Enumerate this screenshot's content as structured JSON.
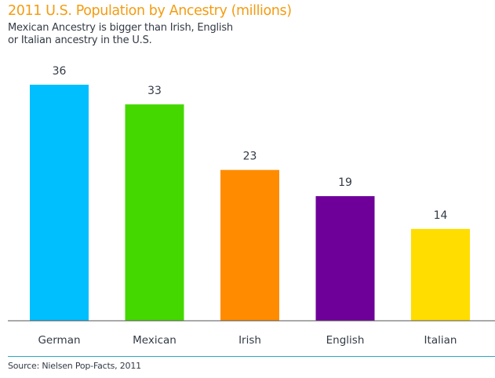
{
  "chart_data": {
    "type": "bar",
    "title": "2011 U.S. Population by Ancestry (millions)",
    "subtitle_lines": [
      "Mexican Ancestry is bigger than Irish, English",
      "or Italian ancestry in the U.S."
    ],
    "categories": [
      "German",
      "Mexican",
      "Irish",
      "English",
      "Italian"
    ],
    "values": [
      36,
      33,
      23,
      19,
      14
    ],
    "colors": [
      "#00bfff",
      "#44d800",
      "#ff8c00",
      "#6e0099",
      "#ffdd00"
    ],
    "xlabel": "",
    "ylabel": "",
    "ylim": [
      0,
      36
    ],
    "grid": false,
    "legend": "none",
    "data_labels": true,
    "source": "Source: Nielsen Pop-Facts, 2011"
  },
  "colors": {
    "title": "#f39c12",
    "text": "#333a45",
    "axis": "#555555",
    "separator": "#2aa8c0"
  }
}
